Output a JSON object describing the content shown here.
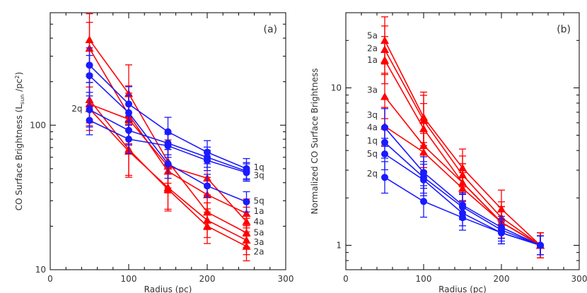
{
  "colors": {
    "red": "#ff0000",
    "blue": "#1a1aff",
    "axis": "#000000",
    "text": "#333333"
  },
  "chart_data": [
    {
      "type": "line",
      "panel_label": "(a)",
      "xlabel": "Radius (pc)",
      "ylabel_parts": [
        "CO Surface Brightness (L",
        "sun",
        " /pc",
        "2",
        ")"
      ],
      "xlim": [
        0,
        300
      ],
      "ylim": [
        10,
        600
      ],
      "yscale": "log",
      "xticks": [
        0,
        100,
        200,
        300
      ],
      "xtick_labels": [
        "0",
        "100",
        "200",
        "300"
      ],
      "yticks": [
        10,
        100
      ],
      "ytick_labels": [
        "10",
        "100"
      ],
      "x": [
        50,
        100,
        150,
        200,
        250
      ],
      "series": [
        {
          "name": "1a",
          "color": "red",
          "marker": "triangle",
          "values": [
            340,
            118,
            48,
            33,
            24.5
          ],
          "err": [
            0.18,
            0.2,
            0.15,
            0.12,
            0.1
          ]
        },
        {
          "name": "2a",
          "color": "red",
          "marker": "triangle",
          "values": [
            150,
            68,
            36,
            20,
            14.5
          ],
          "err": [
            0.16,
            0.18,
            0.15,
            0.12,
            0.1
          ]
        },
        {
          "name": "3a",
          "color": "red",
          "marker": "triangle",
          "values": [
            130,
            66,
            37,
            22,
            16
          ],
          "err": [
            0.15,
            0.18,
            0.15,
            0.12,
            0.1
          ]
        },
        {
          "name": "4a",
          "color": "red",
          "marker": "triangle",
          "values": [
            140,
            110,
            52,
            43,
            21.5
          ],
          "err": [
            0.15,
            0.18,
            0.15,
            0.12,
            0.1
          ]
        },
        {
          "name": "5a",
          "color": "red",
          "marker": "triangle",
          "values": [
            390,
            165,
            56,
            25,
            18
          ],
          "err": [
            0.18,
            0.2,
            0.15,
            0.12,
            0.1
          ]
        },
        {
          "name": "1q",
          "color": "blue",
          "marker": "circle",
          "values": [
            260,
            140,
            90,
            65,
            50
          ],
          "err": [
            0.12,
            0.12,
            0.1,
            0.08,
            0.07
          ]
        },
        {
          "name": "2q",
          "color": "blue",
          "marker": "circle",
          "values": [
            108,
            80,
            72,
            57,
            47
          ],
          "err": [
            0.1,
            0.1,
            0.08,
            0.07,
            0.06
          ]
        },
        {
          "name": "3q",
          "color": "blue",
          "marker": "circle",
          "values": [
            128,
            92,
            75,
            60,
            48
          ],
          "err": [
            0.12,
            0.1,
            0.08,
            0.07,
            0.06
          ]
        },
        {
          "name": "5q",
          "color": "blue",
          "marker": "circle",
          "values": [
            220,
            122,
            54,
            38,
            29.5
          ],
          "err": [
            0.14,
            0.12,
            0.1,
            0.08,
            0.07
          ]
        }
      ],
      "labels_right": [
        {
          "text": "1q",
          "y": 51
        },
        {
          "text": "3q",
          "y": 45
        },
        {
          "text": "5q",
          "y": 30
        },
        {
          "text": "1a",
          "y": 25.5
        },
        {
          "text": "4a",
          "y": 21.5
        },
        {
          "text": "5a",
          "y": 18
        },
        {
          "text": "3a",
          "y": 15.5
        },
        {
          "text": "2a",
          "y": 13.3
        }
      ],
      "labels_left": [
        {
          "text": "2q",
          "y": 130
        }
      ]
    },
    {
      "type": "line",
      "panel_label": "(b)",
      "xlabel": "Radius (pc)",
      "ylabel_parts": [
        "Normalized CO Surface Brightness"
      ],
      "xlim": [
        0,
        300
      ],
      "ylim": [
        0.7,
        30
      ],
      "yscale": "log",
      "xticks": [
        0,
        100,
        200,
        300
      ],
      "xtick_labels": [
        "0",
        "100",
        "200",
        "300"
      ],
      "yticks": [
        1,
        10
      ],
      "ytick_labels": [
        "1",
        "10"
      ],
      "x": [
        50,
        100,
        150,
        200,
        250
      ],
      "series": [
        {
          "name": "5a",
          "color": "red",
          "marker": "triangle",
          "values": [
            20,
            6.5,
            3.1,
            1.7,
            1.0
          ],
          "err": [
            0.15,
            0.16,
            0.12,
            0.12,
            0.08
          ]
        },
        {
          "name": "2a",
          "color": "red",
          "marker": "triangle",
          "values": [
            17.5,
            6.2,
            2.8,
            1.5,
            1.0
          ],
          "err": [
            0.15,
            0.16,
            0.12,
            0.1,
            0.08
          ]
        },
        {
          "name": "1a",
          "color": "red",
          "marker": "triangle",
          "values": [
            15,
            5.5,
            2.5,
            1.4,
            1.0
          ],
          "err": [
            0.15,
            0.16,
            0.12,
            0.1,
            0.08
          ]
        },
        {
          "name": "3a",
          "color": "red",
          "marker": "triangle",
          "values": [
            8.8,
            4.3,
            2.5,
            1.4,
            1.0
          ],
          "err": [
            0.14,
            0.14,
            0.12,
            0.1,
            0.08
          ]
        },
        {
          "name": "4a",
          "color": "red",
          "marker": "triangle",
          "values": [
            5.7,
            3.9,
            2.3,
            1.4,
            1.0
          ],
          "err": [
            0.12,
            0.12,
            0.1,
            0.1,
            0.08
          ]
        },
        {
          "name": "3q",
          "color": "blue",
          "marker": "circle",
          "values": [
            5.6,
            2.9,
            1.8,
            1.3,
            1.0
          ],
          "err": [
            0.12,
            0.1,
            0.08,
            0.07,
            0.06
          ]
        },
        {
          "name": "1q",
          "color": "blue",
          "marker": "circle",
          "values": [
            4.5,
            2.7,
            1.75,
            1.25,
            1.0
          ],
          "err": [
            0.1,
            0.1,
            0.08,
            0.07,
            0.06
          ]
        },
        {
          "name": "5q",
          "color": "blue",
          "marker": "circle",
          "values": [
            3.8,
            2.6,
            1.6,
            1.2,
            1.0
          ],
          "err": [
            0.1,
            0.1,
            0.08,
            0.07,
            0.06
          ]
        },
        {
          "name": "2q",
          "color": "blue",
          "marker": "circle",
          "values": [
            2.7,
            1.9,
            1.5,
            1.2,
            1.0
          ],
          "err": [
            0.1,
            0.1,
            0.08,
            0.07,
            0.06
          ]
        }
      ],
      "labels_left": [
        {
          "text": "5a",
          "y": 21.5
        },
        {
          "text": "2a",
          "y": 17.8
        },
        {
          "text": "1a",
          "y": 15.0
        },
        {
          "text": "3a",
          "y": 9.7
        },
        {
          "text": "3q",
          "y": 6.7
        },
        {
          "text": "4a",
          "y": 5.6
        },
        {
          "text": "1q",
          "y": 4.6
        },
        {
          "text": "5q",
          "y": 3.8
        },
        {
          "text": "2q",
          "y": 2.85
        }
      ],
      "labels_right": []
    }
  ]
}
